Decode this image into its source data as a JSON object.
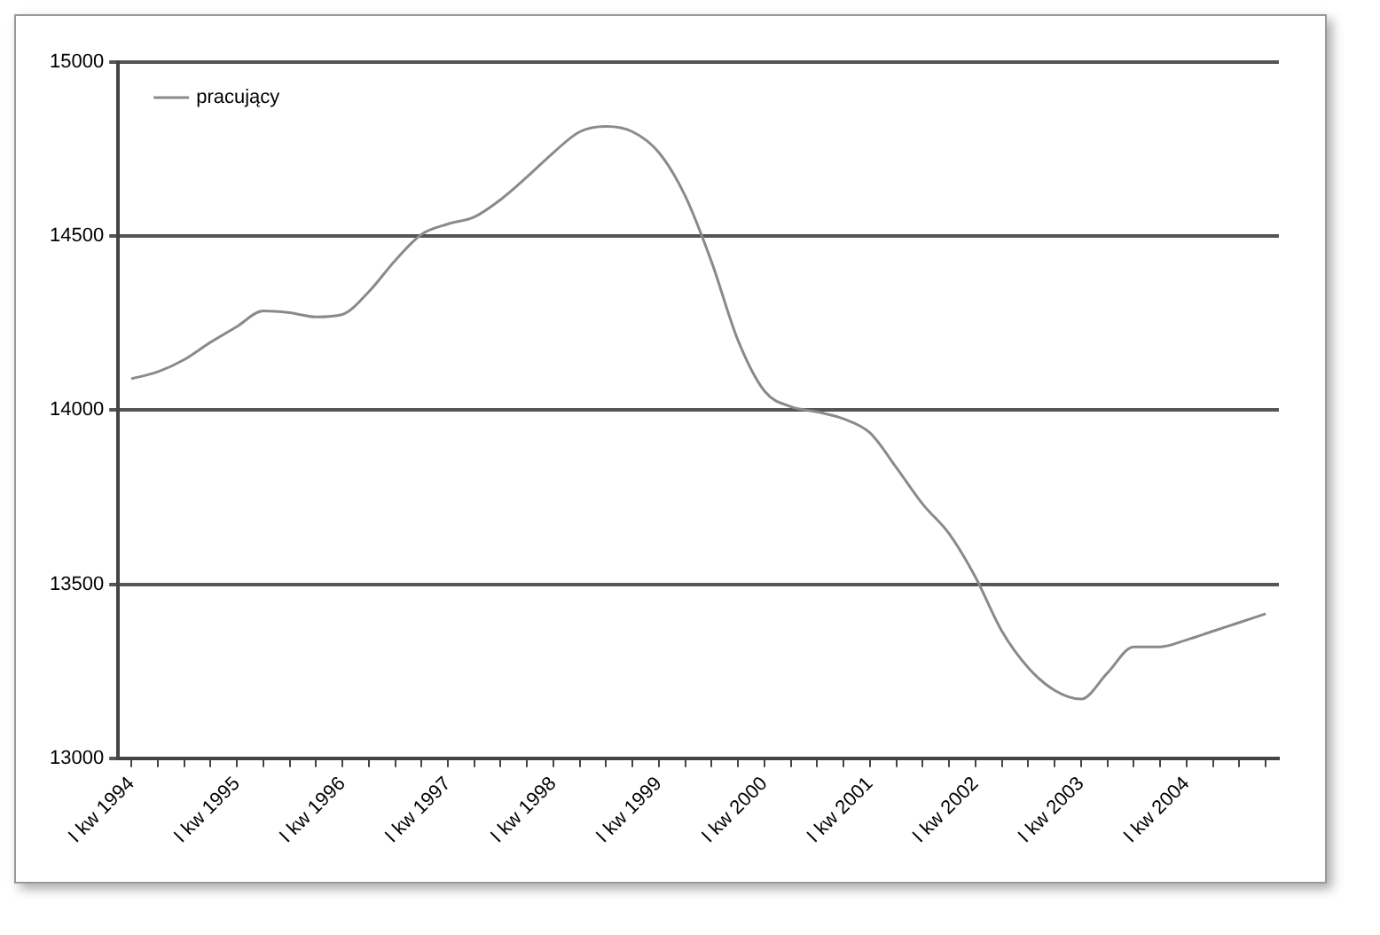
{
  "chart_data": {
    "type": "line",
    "categories": [
      "I kw 1994",
      null,
      null,
      null,
      "I kw 1995",
      null,
      null,
      null,
      "I kw 1996",
      null,
      null,
      null,
      "I kw 1997",
      null,
      null,
      null,
      "I kw 1998",
      null,
      null,
      null,
      "I kw 1999",
      null,
      null,
      null,
      "I kw 2000",
      null,
      null,
      null,
      "I kw 2001",
      null,
      null,
      null,
      "I kw 2002",
      null,
      null,
      null,
      "I kw 2003",
      null,
      null,
      null,
      "I kw 2004",
      null,
      null,
      null
    ],
    "series": [
      {
        "name": "pracujący",
        "color": "#8a8a8a",
        "values": [
          14090,
          14110,
          14145,
          14195,
          14240,
          14285,
          14280,
          14268,
          14275,
          14340,
          14430,
          14505,
          14535,
          14555,
          14605,
          14670,
          14740,
          14800,
          14815,
          14800,
          14740,
          14615,
          14425,
          14200,
          14055,
          14010,
          13995,
          13975,
          13935,
          13835,
          13730,
          13645,
          13520,
          13365,
          13260,
          13195,
          13170,
          13245,
          13320,
          13320,
          13340,
          13365,
          13390,
          13415
        ]
      }
    ],
    "ylim": [
      13000,
      15000
    ],
    "yticks": [
      13000,
      13500,
      14000,
      14500,
      15000
    ],
    "grid": "y",
    "legend": "top left",
    "marker": "none",
    "line_style": "solid"
  }
}
